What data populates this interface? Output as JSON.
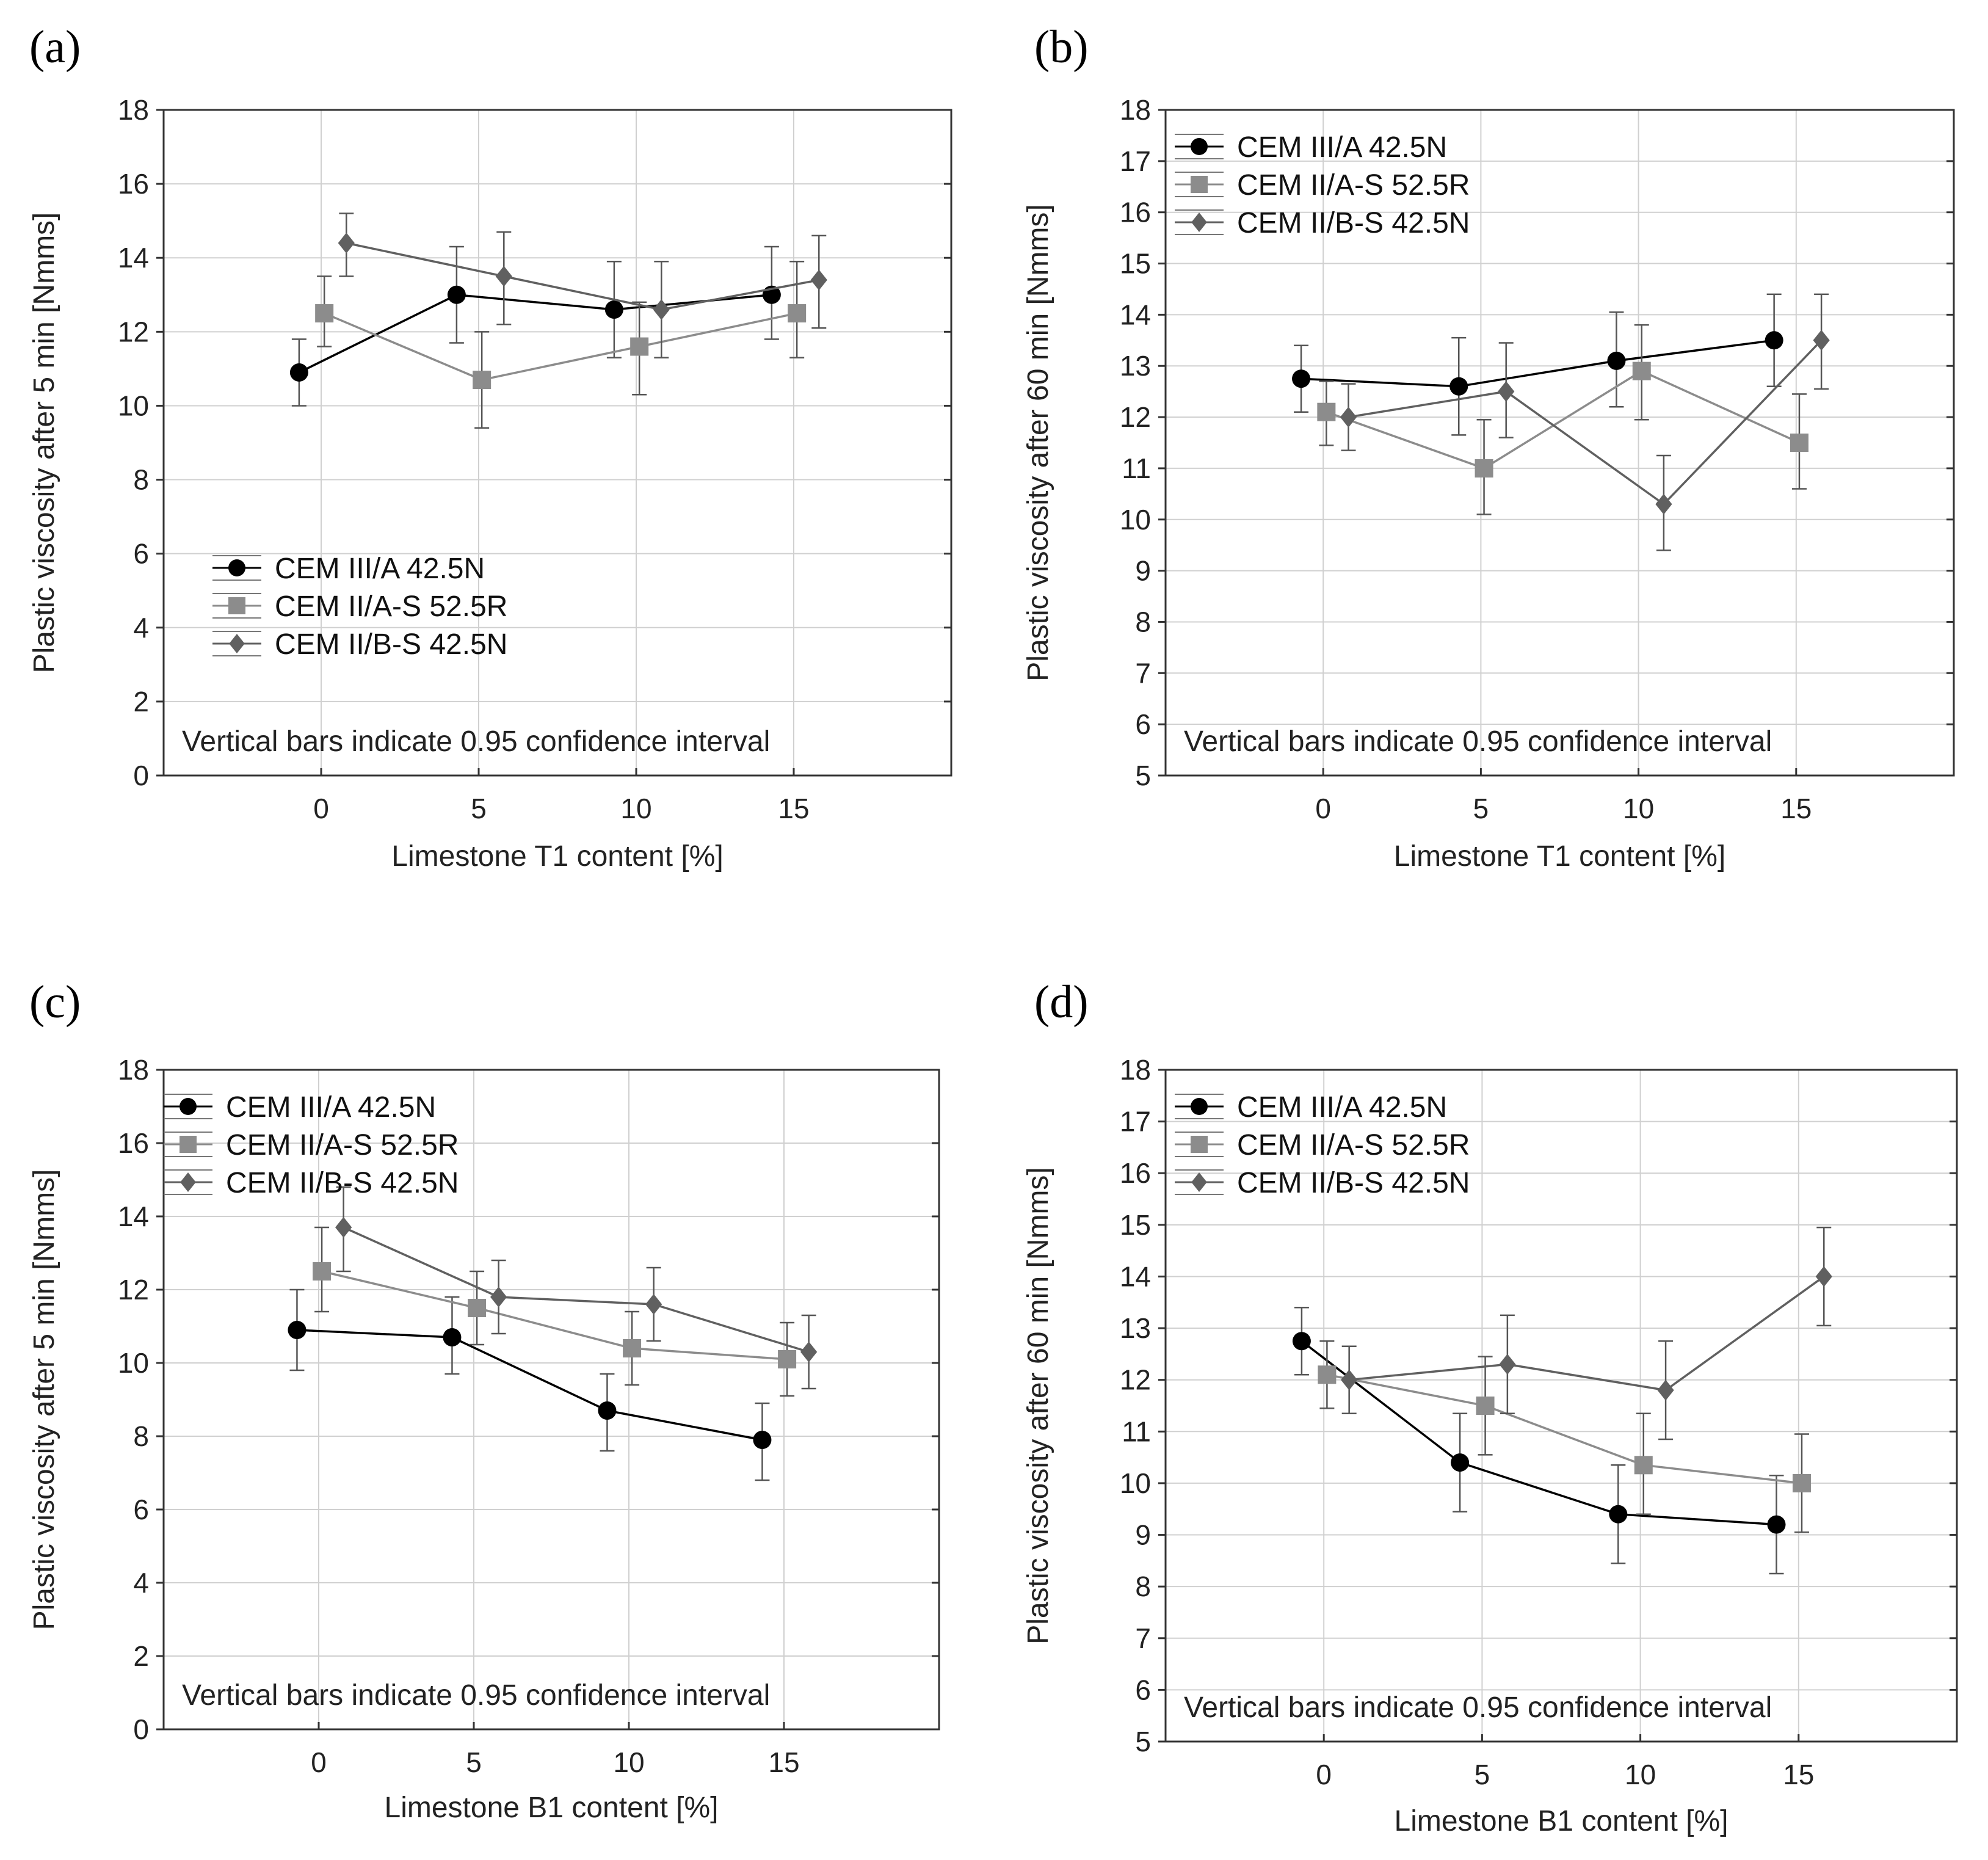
{
  "figure": {
    "panels": [
      {
        "letter": "(a)"
      },
      {
        "letter": "(b)"
      },
      {
        "letter": "(c)"
      },
      {
        "letter": "(d)"
      }
    ]
  },
  "colors": {
    "cem3a": "#000000",
    "cem2as": "#8c8c8c",
    "cem2bs": "#606060",
    "grid": "#d0d0d0",
    "frame": "#333333"
  },
  "chart_data": [
    {
      "type": "line",
      "title": "",
      "panel": "(a)",
      "xlabel": "Limestone T1 content [%]",
      "ylabel": "Plastic viscosity after 5 min [Nmms]",
      "xlim": [
        -5,
        20
      ],
      "ylim": [
        0,
        18
      ],
      "xticks": [
        0,
        5,
        10,
        15
      ],
      "yticks": [
        0,
        2,
        4,
        6,
        8,
        10,
        12,
        14,
        16,
        18
      ],
      "grid": true,
      "legend_position": "lower-left",
      "note": "Vertical bars indicate 0.95 confidence interval",
      "series": [
        {
          "name": "CEM III/A 42.5N",
          "marker": "circle",
          "color": "#000000",
          "x": [
            -0.7,
            4.3,
            9.3,
            14.3
          ],
          "values": [
            10.9,
            13.0,
            12.6,
            13.0
          ],
          "lower": [
            10.0,
            11.7,
            11.3,
            11.8
          ],
          "upper": [
            11.8,
            14.3,
            13.9,
            14.3
          ]
        },
        {
          "name": "CEM II/A-S 52.5R",
          "marker": "square",
          "color": "#8c8c8c",
          "x": [
            0.1,
            5.1,
            10.1,
            15.1
          ],
          "values": [
            12.5,
            10.7,
            11.6,
            12.5
          ],
          "lower": [
            11.6,
            9.4,
            10.3,
            11.3
          ],
          "upper": [
            13.5,
            12.0,
            12.8,
            13.9
          ]
        },
        {
          "name": "CEM II/B-S 42.5N",
          "marker": "diamond",
          "color": "#606060",
          "x": [
            0.8,
            5.8,
            10.8,
            15.8
          ],
          "values": [
            14.4,
            13.5,
            12.6,
            13.4
          ],
          "lower": [
            13.5,
            12.2,
            11.3,
            12.1
          ],
          "upper": [
            15.2,
            14.7,
            13.9,
            14.6
          ]
        }
      ]
    },
    {
      "type": "line",
      "title": "",
      "panel": "(b)",
      "xlabel": "Limestone T1 content [%]",
      "ylabel": "Plastic viscosity after 60 min [Nmms]",
      "xlim": [
        -5,
        20
      ],
      "ylim": [
        5,
        18
      ],
      "xticks": [
        0,
        5,
        10,
        15
      ],
      "yticks": [
        5,
        6,
        7,
        8,
        9,
        10,
        11,
        12,
        13,
        14,
        15,
        16,
        17,
        18
      ],
      "grid": true,
      "legend_position": "top-left",
      "note": "Vertical bars indicate 0.95 confidence interval",
      "series": [
        {
          "name": "CEM III/A 42.5N",
          "marker": "circle",
          "color": "#000000",
          "x": [
            -0.7,
            4.3,
            9.3,
            14.3
          ],
          "values": [
            12.75,
            12.6,
            13.1,
            13.5
          ],
          "lower": [
            12.1,
            11.65,
            12.2,
            12.6
          ],
          "upper": [
            13.4,
            13.55,
            14.05,
            14.4
          ]
        },
        {
          "name": "CEM II/A-S 52.5R",
          "marker": "square",
          "color": "#8c8c8c",
          "x": [
            0.1,
            5.1,
            10.1,
            15.1
          ],
          "values": [
            12.1,
            11.0,
            12.9,
            11.5
          ],
          "lower": [
            11.45,
            10.1,
            11.95,
            10.6
          ],
          "upper": [
            12.7,
            11.95,
            13.8,
            12.45
          ]
        },
        {
          "name": "CEM II/B-S 42.5N",
          "marker": "diamond",
          "color": "#606060",
          "x": [
            0.8,
            5.8,
            10.8,
            15.8
          ],
          "values": [
            12.0,
            12.5,
            10.3,
            13.5
          ],
          "lower": [
            11.35,
            11.6,
            9.4,
            12.55
          ],
          "upper": [
            12.65,
            13.45,
            11.25,
            14.4
          ]
        }
      ]
    },
    {
      "type": "line",
      "title": "",
      "panel": "(c)",
      "xlabel": "Limestone B1 content [%]",
      "ylabel": "Plastic viscosity after 5 min [Nmms]",
      "xlim": [
        -5,
        20
      ],
      "ylim": [
        0,
        18
      ],
      "xticks": [
        0,
        5,
        10,
        15
      ],
      "yticks": [
        0,
        2,
        4,
        6,
        8,
        10,
        12,
        14,
        16,
        18
      ],
      "grid": true,
      "legend_position": "top-left",
      "note": "Vertical bars indicate 0.95 confidence interval",
      "series": [
        {
          "name": "CEM III/A 42.5N",
          "marker": "circle",
          "color": "#000000",
          "x": [
            -0.7,
            4.3,
            9.3,
            14.3
          ],
          "values": [
            10.9,
            10.7,
            8.7,
            7.9
          ],
          "lower": [
            9.8,
            9.7,
            7.6,
            6.8
          ],
          "upper": [
            12.0,
            11.8,
            9.7,
            8.9
          ]
        },
        {
          "name": "CEM II/A-S 52.5R",
          "marker": "square",
          "color": "#8c8c8c",
          "x": [
            0.1,
            5.1,
            10.1,
            15.1
          ],
          "values": [
            12.5,
            11.5,
            10.4,
            10.1
          ],
          "lower": [
            11.4,
            10.5,
            9.4,
            9.1
          ],
          "upper": [
            13.7,
            12.5,
            11.4,
            11.1
          ]
        },
        {
          "name": "CEM II/B-S 42.5N",
          "marker": "diamond",
          "color": "#606060",
          "x": [
            0.8,
            5.8,
            10.8,
            15.8
          ],
          "values": [
            13.7,
            11.8,
            11.6,
            10.3
          ],
          "lower": [
            12.5,
            10.8,
            10.6,
            9.3
          ],
          "upper": [
            14.8,
            12.8,
            12.6,
            11.3
          ]
        }
      ]
    },
    {
      "type": "line",
      "title": "",
      "panel": "(d)",
      "xlabel": "Limestone B1 content [%]",
      "ylabel": "Plastic viscosity after 60 min [Nmms]",
      "xlim": [
        -5,
        20
      ],
      "ylim": [
        5,
        18
      ],
      "xticks": [
        0,
        5,
        10,
        15
      ],
      "yticks": [
        5,
        6,
        7,
        8,
        9,
        10,
        11,
        12,
        13,
        14,
        15,
        16,
        17,
        18
      ],
      "grid": true,
      "legend_position": "top-left",
      "note": "Vertical bars indicate 0.95 confidence interval",
      "series": [
        {
          "name": "CEM III/A 42.5N",
          "marker": "circle",
          "color": "#000000",
          "x": [
            -0.7,
            4.3,
            9.3,
            14.3
          ],
          "values": [
            12.75,
            10.4,
            9.4,
            9.2
          ],
          "lower": [
            12.1,
            9.45,
            8.45,
            8.25
          ],
          "upper": [
            13.4,
            11.35,
            10.35,
            10.15
          ]
        },
        {
          "name": "CEM II/A-S 52.5R",
          "marker": "square",
          "color": "#8c8c8c",
          "x": [
            0.1,
            5.1,
            10.1,
            15.1
          ],
          "values": [
            12.1,
            11.5,
            10.35,
            10.0
          ],
          "lower": [
            11.45,
            10.55,
            9.4,
            9.05
          ],
          "upper": [
            12.75,
            12.45,
            11.35,
            10.95
          ]
        },
        {
          "name": "CEM II/B-S 42.5N",
          "marker": "diamond",
          "color": "#606060",
          "x": [
            0.8,
            5.8,
            10.8,
            15.8
          ],
          "values": [
            12.0,
            12.3,
            11.8,
            14.0
          ],
          "lower": [
            11.35,
            11.35,
            10.85,
            13.05
          ],
          "upper": [
            12.65,
            13.25,
            12.75,
            14.95
          ]
        }
      ]
    }
  ]
}
